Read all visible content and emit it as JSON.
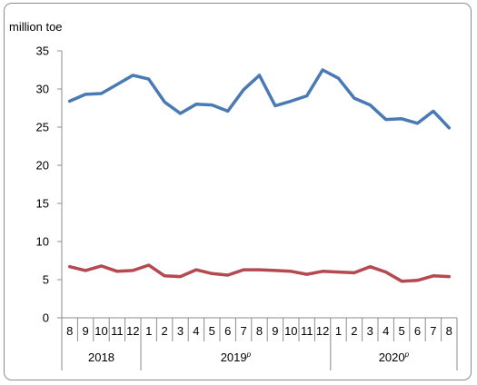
{
  "chart_data": {
    "type": "line",
    "title": "",
    "unit_label": "million toe",
    "ylim": [
      0,
      35
    ],
    "yticks": [
      0,
      5,
      10,
      15,
      20,
      25,
      30,
      35
    ],
    "grid": false,
    "legend": "none",
    "categories": [
      "8",
      "9",
      "10",
      "11",
      "12",
      "1",
      "2",
      "3",
      "4",
      "5",
      "6",
      "7",
      "8",
      "9",
      "10",
      "11",
      "12",
      "1",
      "2",
      "3",
      "4",
      "5",
      "6",
      "7",
      "8"
    ],
    "year_groups": [
      {
        "label": "2018",
        "sup": "",
        "count": 5
      },
      {
        "label": "2019",
        "sup": "p",
        "count": 12
      },
      {
        "label": "2020",
        "sup": "p",
        "count": 8
      }
    ],
    "series": [
      {
        "color": "#4a7ab4",
        "values": [
          28.4,
          29.3,
          29.4,
          30.6,
          31.8,
          31.3,
          28.3,
          26.8,
          28.0,
          27.9,
          27.1,
          29.9,
          31.8,
          27.8,
          28.4,
          29.1,
          32.5,
          31.4,
          28.8,
          27.9,
          26.0,
          26.1,
          25.5,
          27.1,
          24.9
        ]
      },
      {
        "color": "#b44a4f",
        "values": [
          6.7,
          6.2,
          6.8,
          6.1,
          6.2,
          6.9,
          5.5,
          5.4,
          6.3,
          5.8,
          5.6,
          6.3,
          6.3,
          6.2,
          6.1,
          5.7,
          6.1,
          6.0,
          5.9,
          6.7,
          6.0,
          4.8,
          4.9,
          5.5,
          5.4
        ]
      }
    ]
  }
}
